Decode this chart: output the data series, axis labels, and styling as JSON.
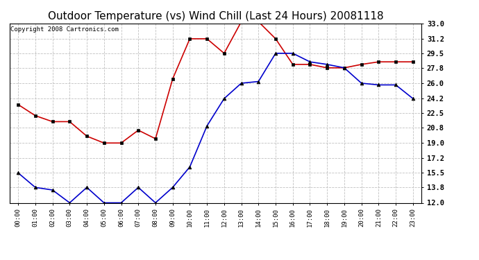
{
  "title": "Outdoor Temperature (vs) Wind Chill (Last 24 Hours) 20081118",
  "copyright": "Copyright 2008 Cartronics.com",
  "x_labels": [
    "00:00",
    "01:00",
    "02:00",
    "03:00",
    "04:00",
    "05:00",
    "06:00",
    "07:00",
    "08:00",
    "09:00",
    "10:00",
    "11:00",
    "12:00",
    "13:00",
    "14:00",
    "15:00",
    "16:00",
    "17:00",
    "18:00",
    "19:00",
    "20:00",
    "21:00",
    "22:00",
    "23:00"
  ],
  "red_data": [
    23.5,
    22.2,
    21.5,
    21.5,
    19.8,
    19.0,
    19.0,
    20.5,
    19.5,
    26.5,
    31.2,
    31.2,
    29.5,
    33.2,
    33.2,
    31.2,
    28.2,
    28.2,
    27.8,
    27.8,
    28.2,
    28.5,
    28.5,
    28.5
  ],
  "blue_data": [
    15.5,
    13.8,
    13.5,
    12.0,
    13.8,
    12.0,
    12.0,
    13.8,
    12.0,
    13.8,
    16.2,
    21.0,
    24.2,
    26.0,
    26.2,
    29.5,
    29.5,
    28.5,
    28.2,
    27.8,
    26.0,
    25.8,
    25.8,
    24.2
  ],
  "ylim": [
    12.0,
    33.0
  ],
  "yticks": [
    12.0,
    13.8,
    15.5,
    17.2,
    19.0,
    20.8,
    22.5,
    24.2,
    26.0,
    27.8,
    29.5,
    31.2,
    33.0
  ],
  "red_color": "#cc0000",
  "blue_color": "#0000cc",
  "bg_color": "#ffffff",
  "grid_color": "#c0c0c0",
  "title_fontsize": 11,
  "copyright_fontsize": 6.5,
  "marker_size": 3.5,
  "line_width": 1.2
}
